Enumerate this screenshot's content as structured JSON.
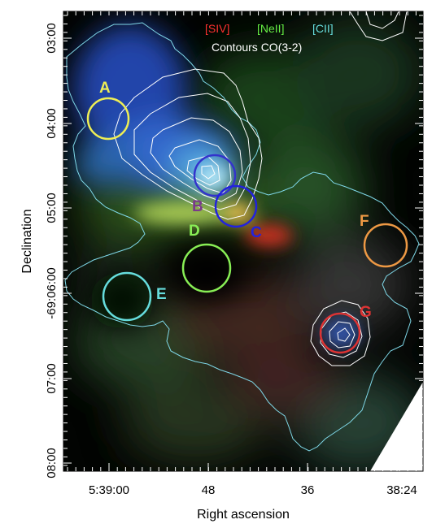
{
  "legend": {
    "siv": "[SIV]",
    "neii": "[NeII]",
    "cii": "[CII]",
    "contours": "Contours CO(3-2)",
    "colors": {
      "siv": "#ff3030",
      "neii": "#66ee44",
      "cii": "#66dddd",
      "contours": "#ffffff"
    }
  },
  "axes": {
    "xlabel": "Right ascension",
    "ylabel": "Declination",
    "xticks": [
      "5:39:00",
      "48",
      "36",
      "38:24"
    ],
    "yticks": [
      "03:00",
      "04:00",
      "05:00",
      "-69:06:00",
      "07:00",
      "08:00"
    ]
  },
  "regions": [
    {
      "label": "A",
      "color": "#eeee55"
    },
    {
      "label": "B",
      "color": "#3333cc",
      "label_color": "#7a3a8a"
    },
    {
      "label": "C",
      "color": "#2222dd"
    },
    {
      "label": "D",
      "color": "#88ee55"
    },
    {
      "label": "E",
      "color": "#66dddd"
    },
    {
      "label": "F",
      "color": "#ee9944"
    },
    {
      "label": "G",
      "color": "#dd3333"
    }
  ]
}
